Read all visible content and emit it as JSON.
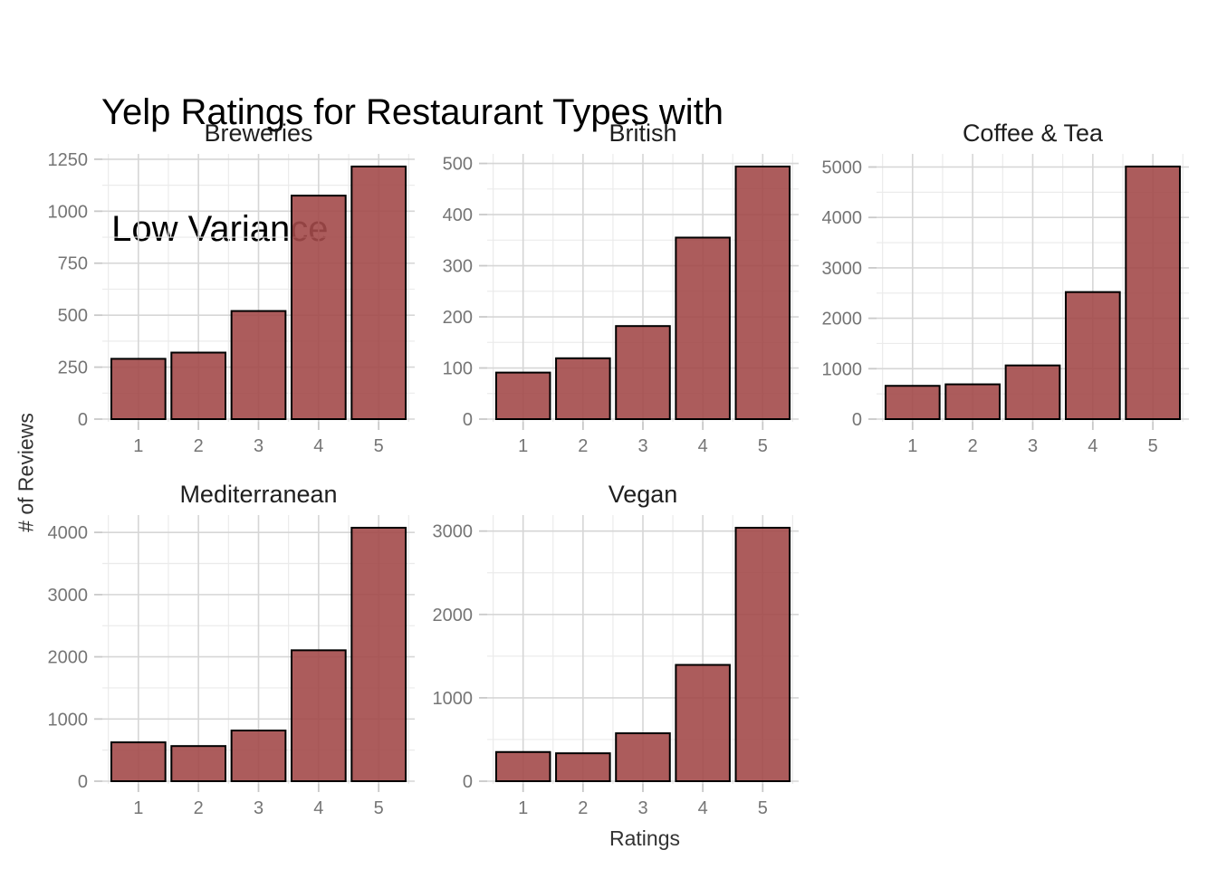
{
  "title": {
    "line1": "Yelp Ratings for Restaurant Types with",
    "line2": " Low Variance"
  },
  "axes": {
    "x_title": "Ratings",
    "y_title": "# of Reviews"
  },
  "colors": {
    "background": "#ffffff",
    "bar_fill": "#a34a4a",
    "bar_fill_opacity": 0.9,
    "bar_stroke": "#000000",
    "grid_major": "#d6d6d6",
    "grid_minor": "#ebebeb",
    "tick": "#c9c9c9",
    "tick_label": "#757575",
    "facet_title": "#1f1f1f",
    "axis_title": "#333333",
    "title": "#000000"
  },
  "chart_data": [
    {
      "type": "bar",
      "title": "Breweries",
      "categories": [
        "1",
        "2",
        "3",
        "4",
        "5"
      ],
      "values": [
        290,
        320,
        520,
        1075,
        1215
      ],
      "yticks": [
        0,
        250,
        500,
        750,
        1000,
        1250
      ],
      "ytick_step": 250,
      "ylim": [
        0,
        1250
      ],
      "xlabel": "Ratings",
      "ylabel": "# of Reviews"
    },
    {
      "type": "bar",
      "title": "British",
      "categories": [
        "1",
        "2",
        "3",
        "4",
        "5"
      ],
      "values": [
        91,
        119,
        182,
        355,
        494
      ],
      "yticks": [
        0,
        100,
        200,
        300,
        400,
        500
      ],
      "ytick_step": 100,
      "ylim": [
        0,
        500
      ],
      "xlabel": "Ratings",
      "ylabel": "# of Reviews"
    },
    {
      "type": "bar",
      "title": "Coffee & Tea",
      "categories": [
        "1",
        "2",
        "3",
        "4",
        "5"
      ],
      "values": [
        660,
        690,
        1065,
        2520,
        5010
      ],
      "yticks": [
        0,
        1000,
        2000,
        3000,
        4000,
        5000
      ],
      "ytick_step": 1000,
      "ylim": [
        0,
        5000
      ],
      "xlabel": "Ratings",
      "ylabel": "# of Reviews"
    },
    {
      "type": "bar",
      "title": "Mediterranean",
      "categories": [
        "1",
        "2",
        "3",
        "4",
        "5"
      ],
      "values": [
        625,
        565,
        815,
        2105,
        4075
      ],
      "yticks": [
        0,
        1000,
        2000,
        3000,
        4000
      ],
      "ytick_step": 1000,
      "ylim": [
        0,
        4000
      ],
      "xlabel": "Ratings",
      "ylabel": "# of Reviews"
    },
    {
      "type": "bar",
      "title": "Vegan",
      "categories": [
        "1",
        "2",
        "3",
        "4",
        "5"
      ],
      "values": [
        350,
        335,
        575,
        1395,
        3040
      ],
      "yticks": [
        0,
        1000,
        2000,
        3000
      ],
      "ytick_step": 1000,
      "ylim": [
        0,
        3000
      ],
      "xlabel": "Ratings",
      "ylabel": "# of Reviews"
    }
  ],
  "layout_hints": {
    "facet_grid": "3 columns x 2 rows, bottom-right cell empty",
    "grid": true,
    "legend": "none"
  }
}
